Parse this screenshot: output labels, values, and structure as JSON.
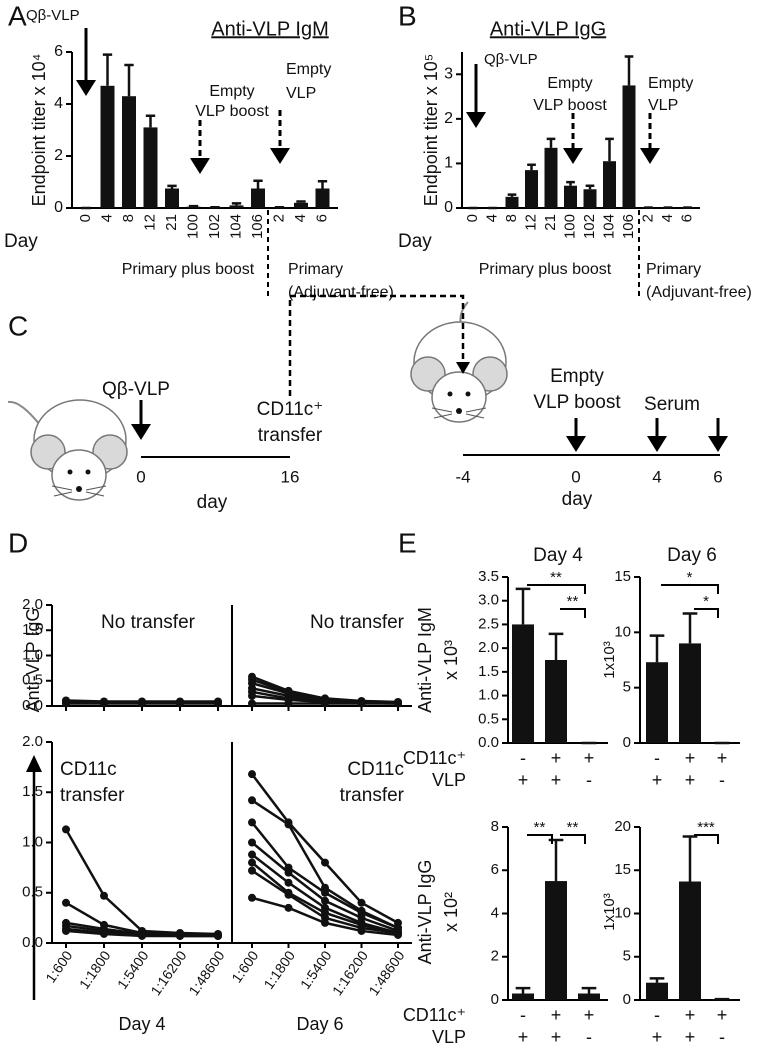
{
  "panel_labels": [
    "A",
    "B",
    "C",
    "D",
    "E"
  ],
  "chart_data": [
    {
      "type": "bar",
      "title": "Anti-VLP IgM",
      "ylabel": "Endpoint titer x 10⁴",
      "xlabel": "Day",
      "categories": [
        "0",
        "4",
        "8",
        "12",
        "21",
        "100",
        "102",
        "104",
        "106",
        "2",
        "4",
        "6"
      ],
      "values": [
        0,
        4.7,
        4.3,
        3.1,
        0.75,
        0.05,
        0.02,
        0.1,
        0.75,
        0.02,
        0.2,
        0.75
      ],
      "errors": [
        0,
        1.2,
        1.2,
        0.45,
        0.1,
        0.02,
        0.01,
        0.08,
        0.3,
        0.01,
        0.05,
        0.28
      ],
      "color": "#111111",
      "ylim": [
        0,
        6
      ],
      "yticks": [
        0,
        2,
        4,
        6
      ],
      "annotations": [
        "Qβ-VLP",
        "Empty",
        "VLP boost",
        "Empty",
        "VLP"
      ],
      "groups": [
        "Primary plus boost",
        "Primary",
        "(Adjuvant-free)"
      ]
    },
    {
      "type": "bar",
      "title": "Anti-VLP IgG",
      "ylabel": "Endpoint titer x 10⁵",
      "xlabel": "Day",
      "categories": [
        "0",
        "4",
        "8",
        "12",
        "21",
        "100",
        "102",
        "104",
        "106",
        "2",
        "4",
        "6"
      ],
      "values": [
        0,
        0,
        0.25,
        0.85,
        1.35,
        0.5,
        0.42,
        1.05,
        2.75,
        0.01,
        0.01,
        0.01
      ],
      "errors": [
        0,
        0,
        0.05,
        0.12,
        0.2,
        0.08,
        0.08,
        0.5,
        0.65,
        0,
        0,
        0
      ],
      "color": "#111111",
      "ylim": [
        0,
        3.5
      ],
      "yticks": [
        0,
        1,
        2,
        3
      ],
      "annotations": [
        "Qβ-VLP",
        "Empty",
        "VLP boost",
        "Empty",
        "VLP"
      ],
      "groups": [
        "Primary plus boost",
        "Primary",
        "(Adjuvant-free)"
      ]
    },
    {
      "type": "line",
      "ylabel": "Anti-VLP IgG",
      "xlabels": [
        "Day 4",
        "Day 6"
      ],
      "categories": [
        "1:600",
        "1:1800",
        "1:5400",
        "1:16200",
        "1:48600"
      ],
      "ylim": [
        0,
        2
      ],
      "yticks": [
        {
          "value": 0,
          "label": "0.0"
        },
        0.5,
        {
          "value": 1,
          "label": "1.0"
        },
        1.5,
        {
          "value": 2,
          "label": "2.0"
        }
      ],
      "panels": [
        {
          "title": [
            "No transfer"
          ],
          "series": [
            {
              "color": "#111111",
              "values": [
                0.11,
                0.09,
                0.09,
                0.09,
                0.09
              ]
            },
            {
              "color": "#111111",
              "values": [
                0.1,
                0.08,
                0.08,
                0.08,
                0.08
              ]
            },
            {
              "color": "#111111",
              "values": [
                0.08,
                0.07,
                0.07,
                0.07,
                0.07
              ]
            },
            {
              "color": "#111111",
              "values": [
                0.06,
                0.06,
                0.06,
                0.06,
                0.06
              ]
            },
            {
              "color": "#111111",
              "values": [
                0.05,
                0.05,
                0.05,
                0.05,
                0.05
              ]
            }
          ]
        },
        {
          "title": [
            "No transfer"
          ],
          "series": [
            {
              "color": "#111111",
              "values": [
                0.58,
                0.3,
                0.15,
                0.1,
                0.08
              ]
            },
            {
              "color": "#111111",
              "values": [
                0.52,
                0.28,
                0.14,
                0.09,
                0.07
              ]
            },
            {
              "color": "#111111",
              "values": [
                0.45,
                0.25,
                0.12,
                0.08,
                0.07
              ]
            },
            {
              "color": "#111111",
              "values": [
                0.35,
                0.2,
                0.1,
                0.07,
                0.06
              ]
            },
            {
              "color": "#111111",
              "values": [
                0.28,
                0.15,
                0.1,
                0.07,
                0.06
              ]
            },
            {
              "color": "#111111",
              "values": [
                0.2,
                0.12,
                0.08,
                0.06,
                0.05
              ]
            },
            {
              "color": "#111111",
              "values": [
                0.05,
                0.05,
                0.05,
                0.05,
                0.05
              ]
            }
          ]
        },
        {
          "title": [
            "CD11c",
            "transfer"
          ],
          "series": [
            {
              "color": "#111111",
              "values": [
                1.13,
                0.47,
                0.12,
                0.1,
                0.09
              ]
            },
            {
              "color": "#111111",
              "values": [
                0.4,
                0.18,
                0.1,
                0.08,
                0.08
              ]
            },
            {
              "color": "#111111",
              "values": [
                0.2,
                0.14,
                0.09,
                0.08,
                0.08
              ]
            },
            {
              "color": "#111111",
              "values": [
                0.17,
                0.12,
                0.08,
                0.08,
                0.07
              ]
            },
            {
              "color": "#111111",
              "values": [
                0.14,
                0.1,
                0.08,
                0.07,
                0.07
              ]
            },
            {
              "color": "#111111",
              "values": [
                0.12,
                0.09,
                0.07,
                0.07,
                0.07
              ]
            }
          ]
        },
        {
          "title": [
            "CD11c",
            "transfer"
          ],
          "series": [
            {
              "color": "#111111",
              "values": [
                1.68,
                1.2,
                0.8,
                0.4,
                0.2
              ]
            },
            {
              "color": "#111111",
              "values": [
                1.42,
                1.18,
                0.55,
                0.32,
                0.15
              ]
            },
            {
              "color": "#111111",
              "values": [
                1.2,
                0.75,
                0.5,
                0.3,
                0.15
              ]
            },
            {
              "color": "#111111",
              "values": [
                1.0,
                0.7,
                0.42,
                0.25,
                0.12
              ]
            },
            {
              "color": "#111111",
              "values": [
                0.88,
                0.6,
                0.35,
                0.2,
                0.1
              ]
            },
            {
              "color": "#111111",
              "values": [
                0.8,
                0.5,
                0.3,
                0.18,
                0.1
              ]
            },
            {
              "color": "#111111",
              "values": [
                0.72,
                0.48,
                0.25,
                0.15,
                0.1
              ]
            },
            {
              "color": "#111111",
              "values": [
                0.45,
                0.35,
                0.2,
                0.12,
                0.08
              ]
            }
          ]
        }
      ]
    },
    {
      "type": "bar",
      "columns": [
        "Day 4",
        "Day 6"
      ],
      "color": "#111111",
      "row_labels": [
        "CD11c⁺",
        "VLP"
      ],
      "rows": [
        [
          "-",
          "+",
          "+"
        ],
        [
          "+",
          "+",
          "-"
        ]
      ],
      "panels": [
        {
          "ylabel": [
            "Anti-VLP IgM",
            "x 10³"
          ],
          "ylim": [
            0,
            3.5
          ],
          "yticks": [
            {
              "value": 0,
              "label": "0.0"
            },
            0.5,
            {
              "value": 1,
              "label": "1.0"
            },
            1.5,
            {
              "value": 2,
              "label": "2.0"
            },
            2.5,
            {
              "value": 3,
              "label": "3.0"
            },
            3.5
          ],
          "values": [
            2.5,
            1.75,
            0
          ],
          "errors": [
            0.75,
            0.55,
            0
          ],
          "brackets": [
            {
              "label": "**",
              "between": [
                0,
                2
              ]
            },
            {
              "label": "**",
              "between": [
                1,
                2
              ]
            }
          ]
        },
        {
          "ylabel": [
            "1x10³"
          ],
          "ylim": [
            0,
            15
          ],
          "yticks": [
            0,
            5,
            10,
            15
          ],
          "values": [
            7.3,
            9.0,
            0
          ],
          "errors": [
            2.4,
            2.7,
            0
          ],
          "brackets": [
            {
              "label": "*",
              "between": [
                0,
                2
              ]
            },
            {
              "label": "*",
              "between": [
                1,
                2
              ]
            }
          ]
        },
        {
          "ylabel": [
            "Anti-VLP IgG",
            "x 10²"
          ],
          "ylim": [
            0,
            8
          ],
          "yticks": [
            0,
            2,
            4,
            6,
            8
          ],
          "values": [
            0.3,
            5.5,
            0.3
          ],
          "errors": [
            0.25,
            1.9,
            0.25
          ],
          "brackets": [
            {
              "label": "**",
              "between": [
                0,
                1
              ]
            },
            {
              "label": "**",
              "between": [
                1,
                2
              ]
            }
          ]
        },
        {
          "ylabel": [
            "1x10³"
          ],
          "ylim": [
            0,
            20
          ],
          "yticks": [
            0,
            5,
            10,
            15,
            20
          ],
          "values": [
            2.0,
            13.7,
            0.1
          ],
          "errors": [
            0.5,
            5.2,
            0
          ],
          "brackets": [
            {
              "label": "***",
              "between": [
                1,
                2
              ]
            }
          ]
        }
      ]
    }
  ],
  "diagram": {
    "left": {
      "injection": "Qβ-VLP",
      "transfer": [
        "CD11c⁺",
        "transfer"
      ],
      "ticks": [
        "0",
        "16"
      ],
      "axis": "day"
    },
    "right": {
      "boost": [
        "Empty",
        "VLP boost"
      ],
      "serum": "Serum",
      "ticks": [
        "-4",
        "0",
        "4",
        "6"
      ],
      "axis": "day"
    }
  }
}
